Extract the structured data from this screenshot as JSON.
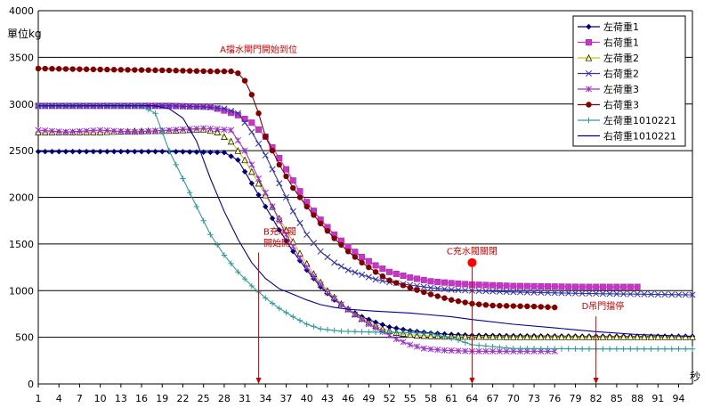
{
  "chart_data": {
    "type": "line",
    "ylabel": "單位kg",
    "xunit": "秒",
    "ylim": [
      0,
      4000
    ],
    "yticks": [
      0,
      500,
      1000,
      1500,
      2000,
      2500,
      3000,
      3500,
      4000
    ],
    "xlim": [
      1,
      96
    ],
    "xticks": [
      1,
      4,
      7,
      10,
      13,
      16,
      19,
      22,
      25,
      28,
      31,
      34,
      37,
      40,
      43,
      46,
      49,
      52,
      55,
      58,
      61,
      64,
      67,
      70,
      73,
      76,
      79,
      82,
      85,
      88,
      91,
      94
    ],
    "grid": "horizontal",
    "legend_position": "top-right",
    "series": [
      {
        "name": "左荷重1",
        "color": "#00007f",
        "marker": "diamond",
        "points": [
          [
            1,
            2490
          ],
          [
            10,
            2490
          ],
          [
            20,
            2490
          ],
          [
            28,
            2480
          ],
          [
            30,
            2400
          ],
          [
            32,
            2150
          ],
          [
            34,
            1900
          ],
          [
            36,
            1650
          ],
          [
            38,
            1420
          ],
          [
            40,
            1220
          ],
          [
            42,
            1040
          ],
          [
            44,
            900
          ],
          [
            46,
            800
          ],
          [
            48,
            720
          ],
          [
            50,
            660
          ],
          [
            52,
            610
          ],
          [
            55,
            570
          ],
          [
            58,
            545
          ],
          [
            61,
            530
          ],
          [
            64,
            520
          ],
          [
            70,
            515
          ],
          [
            80,
            510
          ],
          [
            90,
            510
          ],
          [
            96,
            510
          ]
        ]
      },
      {
        "name": "右荷重1",
        "color": "#cc33cc",
        "marker": "square",
        "points": [
          [
            1,
            2980
          ],
          [
            10,
            2980
          ],
          [
            20,
            2980
          ],
          [
            26,
            2970
          ],
          [
            28,
            2930
          ],
          [
            30,
            2880
          ],
          [
            32,
            2800
          ],
          [
            34,
            2650
          ],
          [
            36,
            2420
          ],
          [
            38,
            2180
          ],
          [
            40,
            1950
          ],
          [
            42,
            1760
          ],
          [
            44,
            1600
          ],
          [
            46,
            1470
          ],
          [
            48,
            1360
          ],
          [
            50,
            1270
          ],
          [
            52,
            1200
          ],
          [
            55,
            1140
          ],
          [
            58,
            1100
          ],
          [
            61,
            1080
          ],
          [
            64,
            1065
          ],
          [
            70,
            1050
          ],
          [
            80,
            1040
          ],
          [
            88,
            1040
          ]
        ]
      },
      {
        "name": "左荷重2",
        "color": "#c8c800",
        "marker": "triangle",
        "points": [
          [
            1,
            2700
          ],
          [
            10,
            2700
          ],
          [
            15,
            2710
          ],
          [
            20,
            2715
          ],
          [
            25,
            2730
          ],
          [
            27,
            2700
          ],
          [
            29,
            2600
          ],
          [
            31,
            2400
          ],
          [
            33,
            2150
          ],
          [
            35,
            1900
          ],
          [
            37,
            1650
          ],
          [
            39,
            1400
          ],
          [
            41,
            1180
          ],
          [
            43,
            1000
          ],
          [
            45,
            860
          ],
          [
            47,
            750
          ],
          [
            49,
            660
          ],
          [
            51,
            590
          ],
          [
            53,
            550
          ],
          [
            56,
            520
          ],
          [
            60,
            510
          ],
          [
            70,
            505
          ],
          [
            96,
            505
          ]
        ]
      },
      {
        "name": "右荷重2",
        "color": "#3333aa",
        "marker": "x",
        "points": [
          [
            1,
            2980
          ],
          [
            10,
            2980
          ],
          [
            20,
            2980
          ],
          [
            25,
            2970
          ],
          [
            28,
            2950
          ],
          [
            30,
            2900
          ],
          [
            32,
            2700
          ],
          [
            34,
            2450
          ],
          [
            36,
            2150
          ],
          [
            38,
            1850
          ],
          [
            40,
            1600
          ],
          [
            42,
            1420
          ],
          [
            44,
            1300
          ],
          [
            46,
            1220
          ],
          [
            48,
            1170
          ],
          [
            50,
            1120
          ],
          [
            52,
            1090
          ],
          [
            55,
            1060
          ],
          [
            58,
            1030
          ],
          [
            61,
            1010
          ],
          [
            64,
            1000
          ],
          [
            70,
            985
          ],
          [
            80,
            970
          ],
          [
            90,
            960
          ],
          [
            96,
            955
          ]
        ]
      },
      {
        "name": "左荷重3",
        "color": "#9933cc",
        "marker": "star",
        "points": [
          [
            1,
            2720
          ],
          [
            5,
            2700
          ],
          [
            10,
            2720
          ],
          [
            15,
            2700
          ],
          [
            20,
            2720
          ],
          [
            25,
            2740
          ],
          [
            29,
            2720
          ],
          [
            31,
            2500
          ],
          [
            33,
            2200
          ],
          [
            35,
            1900
          ],
          [
            37,
            1600
          ],
          [
            39,
            1350
          ],
          [
            41,
            1150
          ],
          [
            43,
            980
          ],
          [
            45,
            850
          ],
          [
            47,
            740
          ],
          [
            49,
            640
          ],
          [
            51,
            560
          ],
          [
            53,
            480
          ],
          [
            55,
            420
          ],
          [
            57,
            380
          ],
          [
            60,
            360
          ],
          [
            64,
            350
          ],
          [
            70,
            350
          ],
          [
            76,
            350
          ]
        ]
      },
      {
        "name": "右荷重3",
        "color": "#800000",
        "marker": "circle",
        "points": [
          [
            1,
            3380
          ],
          [
            10,
            3370
          ],
          [
            20,
            3360
          ],
          [
            26,
            3350
          ],
          [
            29,
            3350
          ],
          [
            30,
            3330
          ],
          [
            31,
            3250
          ],
          [
            32,
            3100
          ],
          [
            33,
            2900
          ],
          [
            34,
            2650
          ],
          [
            36,
            2350
          ],
          [
            38,
            2100
          ],
          [
            40,
            1900
          ],
          [
            42,
            1720
          ],
          [
            44,
            1560
          ],
          [
            46,
            1420
          ],
          [
            48,
            1300
          ],
          [
            50,
            1200
          ],
          [
            52,
            1110
          ],
          [
            55,
            1030
          ],
          [
            58,
            960
          ],
          [
            61,
            900
          ],
          [
            64,
            860
          ],
          [
            67,
            840
          ],
          [
            73,
            830
          ],
          [
            76,
            820
          ]
        ]
      },
      {
        "name": "左荷重1010221",
        "color": "#339999",
        "marker": "plus",
        "points": [
          [
            1,
            2980
          ],
          [
            10,
            2980
          ],
          [
            16,
            2980
          ],
          [
            18,
            2900
          ],
          [
            19,
            2700
          ],
          [
            20,
            2500
          ],
          [
            22,
            2200
          ],
          [
            24,
            1900
          ],
          [
            26,
            1600
          ],
          [
            28,
            1380
          ],
          [
            30,
            1200
          ],
          [
            32,
            1050
          ],
          [
            34,
            920
          ],
          [
            36,
            810
          ],
          [
            38,
            720
          ],
          [
            40,
            640
          ],
          [
            42,
            590
          ],
          [
            45,
            565
          ],
          [
            50,
            555
          ],
          [
            55,
            550
          ],
          [
            58,
            540
          ],
          [
            62,
            470
          ],
          [
            64,
            420
          ],
          [
            70,
            380
          ],
          [
            80,
            375
          ],
          [
            96,
            375
          ]
        ]
      },
      {
        "name": "右荷重1010221",
        "color": "#000099",
        "marker": "none",
        "points": [
          [
            1,
            2980
          ],
          [
            10,
            2980
          ],
          [
            18,
            2980
          ],
          [
            20,
            2950
          ],
          [
            22,
            2850
          ],
          [
            24,
            2600
          ],
          [
            26,
            2200
          ],
          [
            28,
            1850
          ],
          [
            30,
            1550
          ],
          [
            32,
            1300
          ],
          [
            34,
            1130
          ],
          [
            36,
            1020
          ],
          [
            38,
            960
          ],
          [
            40,
            900
          ],
          [
            42,
            850
          ],
          [
            44,
            820
          ],
          [
            46,
            800
          ],
          [
            50,
            780
          ],
          [
            55,
            760
          ],
          [
            58,
            740
          ],
          [
            61,
            720
          ],
          [
            64,
            690
          ],
          [
            70,
            640
          ],
          [
            76,
            600
          ],
          [
            82,
            560
          ],
          [
            88,
            530
          ],
          [
            96,
            510
          ]
        ]
      }
    ],
    "annotations": [
      {
        "text": "A擋水閘門開始到位",
        "x": 33,
        "y": 3550
      },
      {
        "lines": [
          "B充水閥",
          "開始開"
        ],
        "x": 35,
        "y": 1600,
        "arrow_x": 33
      },
      {
        "text": "C充水閥關閉",
        "x": 64,
        "y": 1390,
        "point_y": 1300,
        "arrow_x": 64
      },
      {
        "text": "D吊門擋停",
        "x": 83,
        "y": 800,
        "arrow_x": 82
      }
    ]
  }
}
